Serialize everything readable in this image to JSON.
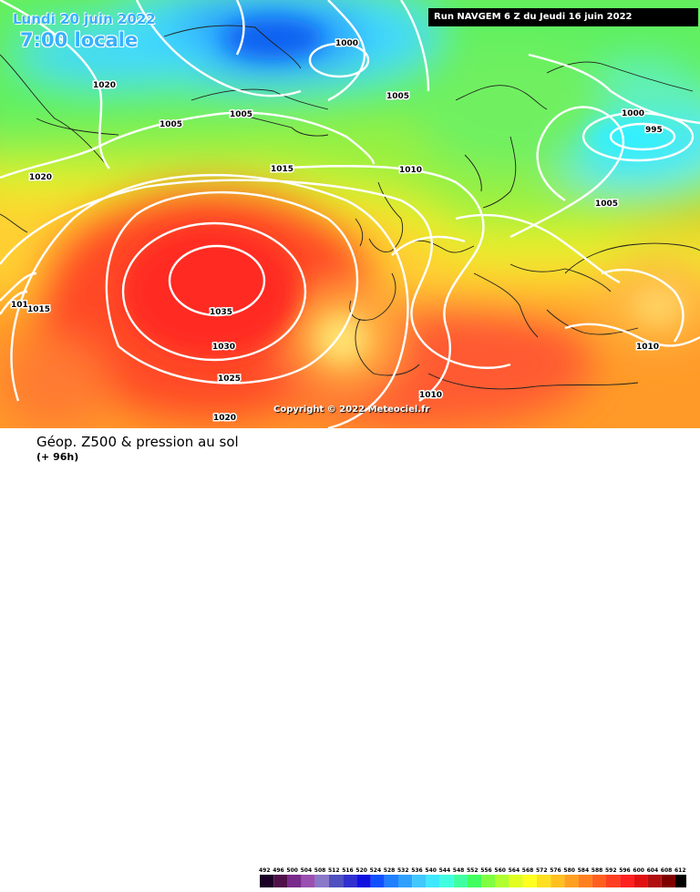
{
  "header": {
    "date_label": "Lundi 20 juin 2022",
    "time_label": "7:00 locale",
    "run_label": "Run NAVGEM 6 Z du Jeudi 16 juin 2022"
  },
  "copyright": "Copyright © 2022 Meteociel.fr",
  "footer": {
    "title": "Géop. Z500 & pression au sol",
    "subtitle": "(+ 96h)"
  },
  "isobars": [
    {
      "id": "1000a",
      "label": "1000"
    },
    {
      "id": "1020a",
      "label": "1020"
    },
    {
      "id": "1005a",
      "label": "1005"
    },
    {
      "id": "1005b",
      "label": "1005"
    },
    {
      "id": "1005c",
      "label": "1005"
    },
    {
      "id": "1000b",
      "label": "1000"
    },
    {
      "id": "995",
      "label": "995"
    },
    {
      "id": "1015a",
      "label": "1015"
    },
    {
      "id": "1010a",
      "label": "1010"
    },
    {
      "id": "1020b",
      "label": "1020"
    },
    {
      "id": "1005d",
      "label": "1005"
    },
    {
      "id": "1015b",
      "label": "1015"
    },
    {
      "id": "1015c",
      "label": "101"
    },
    {
      "id": "1035",
      "label": "1035"
    },
    {
      "id": "1030",
      "label": "1030"
    },
    {
      "id": "1025",
      "label": "1025"
    },
    {
      "id": "1020c",
      "label": "1020"
    },
    {
      "id": "1010b",
      "label": "1010"
    },
    {
      "id": "1010c",
      "label": "1010"
    }
  ],
  "legend": {
    "levels": [
      "492",
      "496",
      "500",
      "504",
      "508",
      "512",
      "516",
      "520",
      "524",
      "528",
      "532",
      "536",
      "540",
      "544",
      "548",
      "552",
      "556",
      "560",
      "564",
      "568",
      "572",
      "576",
      "580",
      "584",
      "588",
      "592",
      "596",
      "600",
      "604",
      "608",
      "612"
    ],
    "colors": [
      "#1a0026",
      "#50104a",
      "#7a2a8a",
      "#9a50b0",
      "#8a78c8",
      "#5050c0",
      "#3030d0",
      "#1010e0",
      "#1050ff",
      "#2080ff",
      "#30a0ff",
      "#40c8ff",
      "#40e8ff",
      "#40ffe0",
      "#40ffa0",
      "#40ff60",
      "#80ff40",
      "#b0ff30",
      "#e0ff20",
      "#ffff20",
      "#ffe020",
      "#ffc020",
      "#ffa020",
      "#ff8020",
      "#ff6020",
      "#ff4020",
      "#ff2020",
      "#e01010",
      "#b01010",
      "#800000",
      "#000000"
    ]
  }
}
